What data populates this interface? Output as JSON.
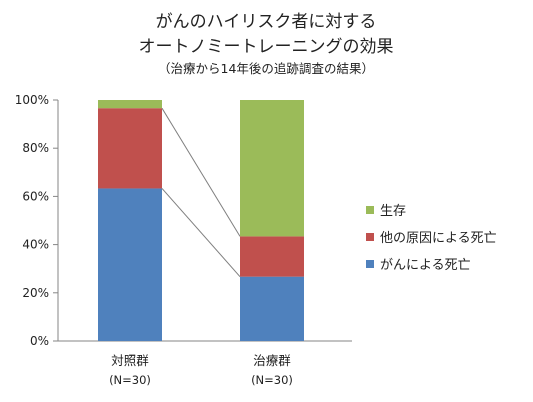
{
  "chart_data": {
    "type": "bar",
    "stacked": true,
    "title_lines": [
      "がんのハイリスク者に対する",
      "オートノミートレーニングの効果"
    ],
    "subtitle": "（治療から14年後の追跡調査の結果）",
    "categories": [
      "対照群",
      "治療群"
    ],
    "category_sublabels": [
      "(N=30)",
      "(N=30)"
    ],
    "series": [
      {
        "name": "がんによる死亡",
        "values": [
          63.3,
          26.7
        ],
        "color": "#4f81bd"
      },
      {
        "name": "他の原因による死亡",
        "values": [
          33.3,
          16.7
        ],
        "color": "#c0504d"
      },
      {
        "name": "生存",
        "values": [
          3.4,
          56.6
        ],
        "color": "#9bbb59"
      }
    ],
    "ylim": [
      0,
      100
    ],
    "yticks": [
      "0%",
      "20%",
      "40%",
      "60%",
      "80%",
      "100%"
    ],
    "legend": [
      "生存",
      "他の原因による死亡",
      "がんによる死亡"
    ],
    "legend_position": "right",
    "grid": false,
    "connector_lines": true
  }
}
